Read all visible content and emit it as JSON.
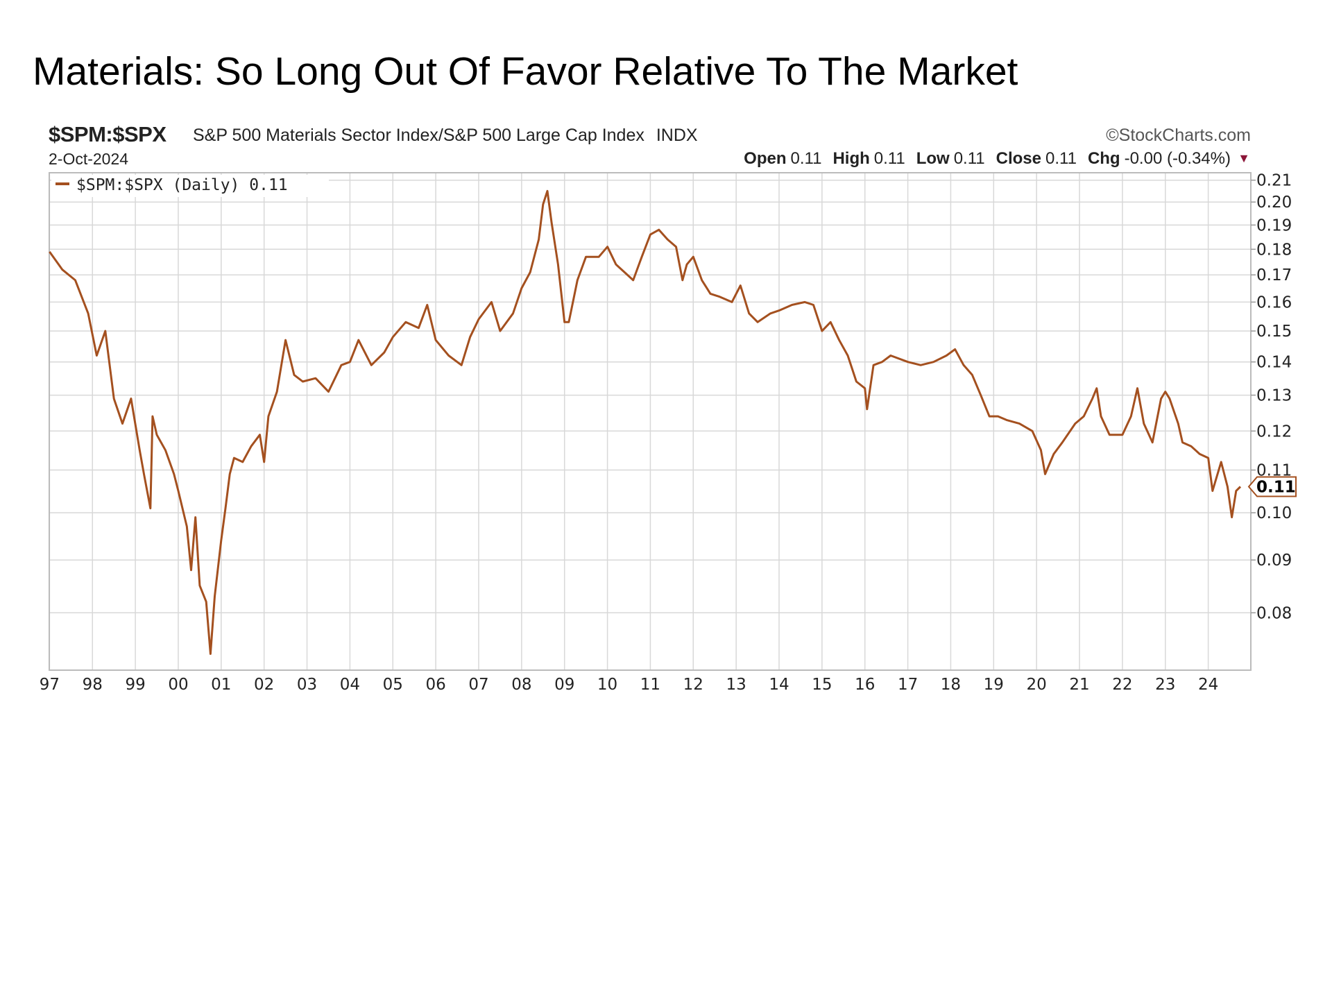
{
  "title": "Materials: So Long Out Of Favor Relative To The Market",
  "header": {
    "symbol": "$SPM:$SPX",
    "description": "S&P 500 Materials Sector Index/S&P 500 Large Cap Index",
    "exchange": "INDX",
    "brand": "©StockCharts.com",
    "date": "2-Oct-2024",
    "open_label": "Open",
    "open": "0.11",
    "high_label": "High",
    "high": "0.11",
    "low_label": "Low",
    "low": "0.11",
    "close_label": "Close",
    "close": "0.11",
    "chg_label": "Chg",
    "chg": "-0.00 (-0.34%)",
    "chg_direction": "down"
  },
  "colors": {
    "line": "#a4501f",
    "grid": "#d8d8d8",
    "down": "#8b1538"
  },
  "chart_data": {
    "type": "line",
    "y_scale": "log",
    "ylim": [
      0.07,
      0.21
    ],
    "grid": true,
    "legend": {
      "label": "$SPM:$SPX (Daily) 0.11",
      "placement": "top-left"
    },
    "last_value_label": "0.11",
    "y_ticks": [
      "0.21",
      "0.20",
      "0.19",
      "0.18",
      "0.17",
      "0.16",
      "0.15",
      "0.14",
      "0.13",
      "0.12",
      "0.11",
      "0.10",
      "0.09",
      "0.08"
    ],
    "x_ticks": [
      "97",
      "98",
      "99",
      "00",
      "01",
      "02",
      "03",
      "04",
      "05",
      "06",
      "07",
      "08",
      "09",
      "10",
      "11",
      "12",
      "13",
      "14",
      "15",
      "16",
      "17",
      "18",
      "19",
      "20",
      "21",
      "22",
      "23",
      "24"
    ],
    "x": [
      1997.0,
      1997.3,
      1997.6,
      1997.9,
      1998.1,
      1998.3,
      1998.5,
      1998.7,
      1998.9,
      1999.1,
      1999.2,
      1999.35,
      1999.4,
      1999.5,
      1999.7,
      1999.9,
      2000.0,
      2000.2,
      2000.3,
      2000.4,
      2000.5,
      2000.65,
      2000.75,
      2000.85,
      2001.0,
      2001.1,
      2001.2,
      2001.3,
      2001.5,
      2001.7,
      2001.9,
      2002.0,
      2002.1,
      2002.3,
      2002.5,
      2002.7,
      2002.9,
      2003.2,
      2003.5,
      2003.8,
      2004.0,
      2004.2,
      2004.5,
      2004.8,
      2005.0,
      2005.3,
      2005.6,
      2005.8,
      2006.0,
      2006.3,
      2006.6,
      2006.8,
      2007.0,
      2007.3,
      2007.5,
      2007.8,
      2008.0,
      2008.2,
      2008.4,
      2008.5,
      2008.6,
      2008.7,
      2008.85,
      2009.0,
      2009.1,
      2009.3,
      2009.5,
      2009.8,
      2010.0,
      2010.2,
      2010.4,
      2010.6,
      2010.8,
      2011.0,
      2011.2,
      2011.4,
      2011.6,
      2011.75,
      2011.85,
      2012.0,
      2012.2,
      2012.4,
      2012.6,
      2012.9,
      2013.1,
      2013.3,
      2013.5,
      2013.8,
      2014.0,
      2014.3,
      2014.6,
      2014.8,
      2015.0,
      2015.2,
      2015.4,
      2015.6,
      2015.8,
      2016.0,
      2016.05,
      2016.2,
      2016.4,
      2016.6,
      2017.0,
      2017.3,
      2017.6,
      2017.9,
      2018.1,
      2018.3,
      2018.5,
      2018.7,
      2018.9,
      2019.1,
      2019.3,
      2019.6,
      2019.9,
      2020.1,
      2020.2,
      2020.4,
      2020.6,
      2020.9,
      2021.1,
      2021.3,
      2021.4,
      2021.5,
      2021.7,
      2022.0,
      2022.2,
      2022.35,
      2022.5,
      2022.7,
      2022.9,
      2023.0,
      2023.1,
      2023.3,
      2023.4,
      2023.6,
      2023.8,
      2024.0,
      2024.1,
      2024.3,
      2024.45,
      2024.55,
      2024.65,
      2024.75
    ],
    "values": [
      0.179,
      0.172,
      0.168,
      0.156,
      0.142,
      0.15,
      0.129,
      0.122,
      0.129,
      0.115,
      0.109,
      0.101,
      0.124,
      0.119,
      0.115,
      0.109,
      0.105,
      0.097,
      0.088,
      0.099,
      0.085,
      0.082,
      0.073,
      0.083,
      0.094,
      0.101,
      0.109,
      0.113,
      0.112,
      0.116,
      0.119,
      0.112,
      0.124,
      0.131,
      0.147,
      0.136,
      0.134,
      0.135,
      0.131,
      0.139,
      0.14,
      0.147,
      0.139,
      0.143,
      0.148,
      0.153,
      0.151,
      0.159,
      0.147,
      0.142,
      0.139,
      0.148,
      0.154,
      0.16,
      0.15,
      0.156,
      0.165,
      0.171,
      0.184,
      0.199,
      0.205,
      0.191,
      0.174,
      0.153,
      0.153,
      0.168,
      0.177,
      0.177,
      0.181,
      0.174,
      0.171,
      0.168,
      0.177,
      0.186,
      0.188,
      0.184,
      0.181,
      0.168,
      0.174,
      0.177,
      0.168,
      0.163,
      0.162,
      0.16,
      0.166,
      0.156,
      0.153,
      0.156,
      0.157,
      0.159,
      0.16,
      0.159,
      0.15,
      0.153,
      0.147,
      0.142,
      0.134,
      0.132,
      0.126,
      0.139,
      0.14,
      0.142,
      0.14,
      0.139,
      0.14,
      0.142,
      0.144,
      0.139,
      0.136,
      0.13,
      0.124,
      0.124,
      0.123,
      0.122,
      0.12,
      0.115,
      0.109,
      0.114,
      0.117,
      0.122,
      0.124,
      0.129,
      0.132,
      0.124,
      0.119,
      0.119,
      0.124,
      0.132,
      0.122,
      0.117,
      0.129,
      0.131,
      0.129,
      0.122,
      0.117,
      0.116,
      0.114,
      0.113,
      0.105,
      0.112,
      0.106,
      0.099,
      0.105,
      0.106
    ]
  }
}
